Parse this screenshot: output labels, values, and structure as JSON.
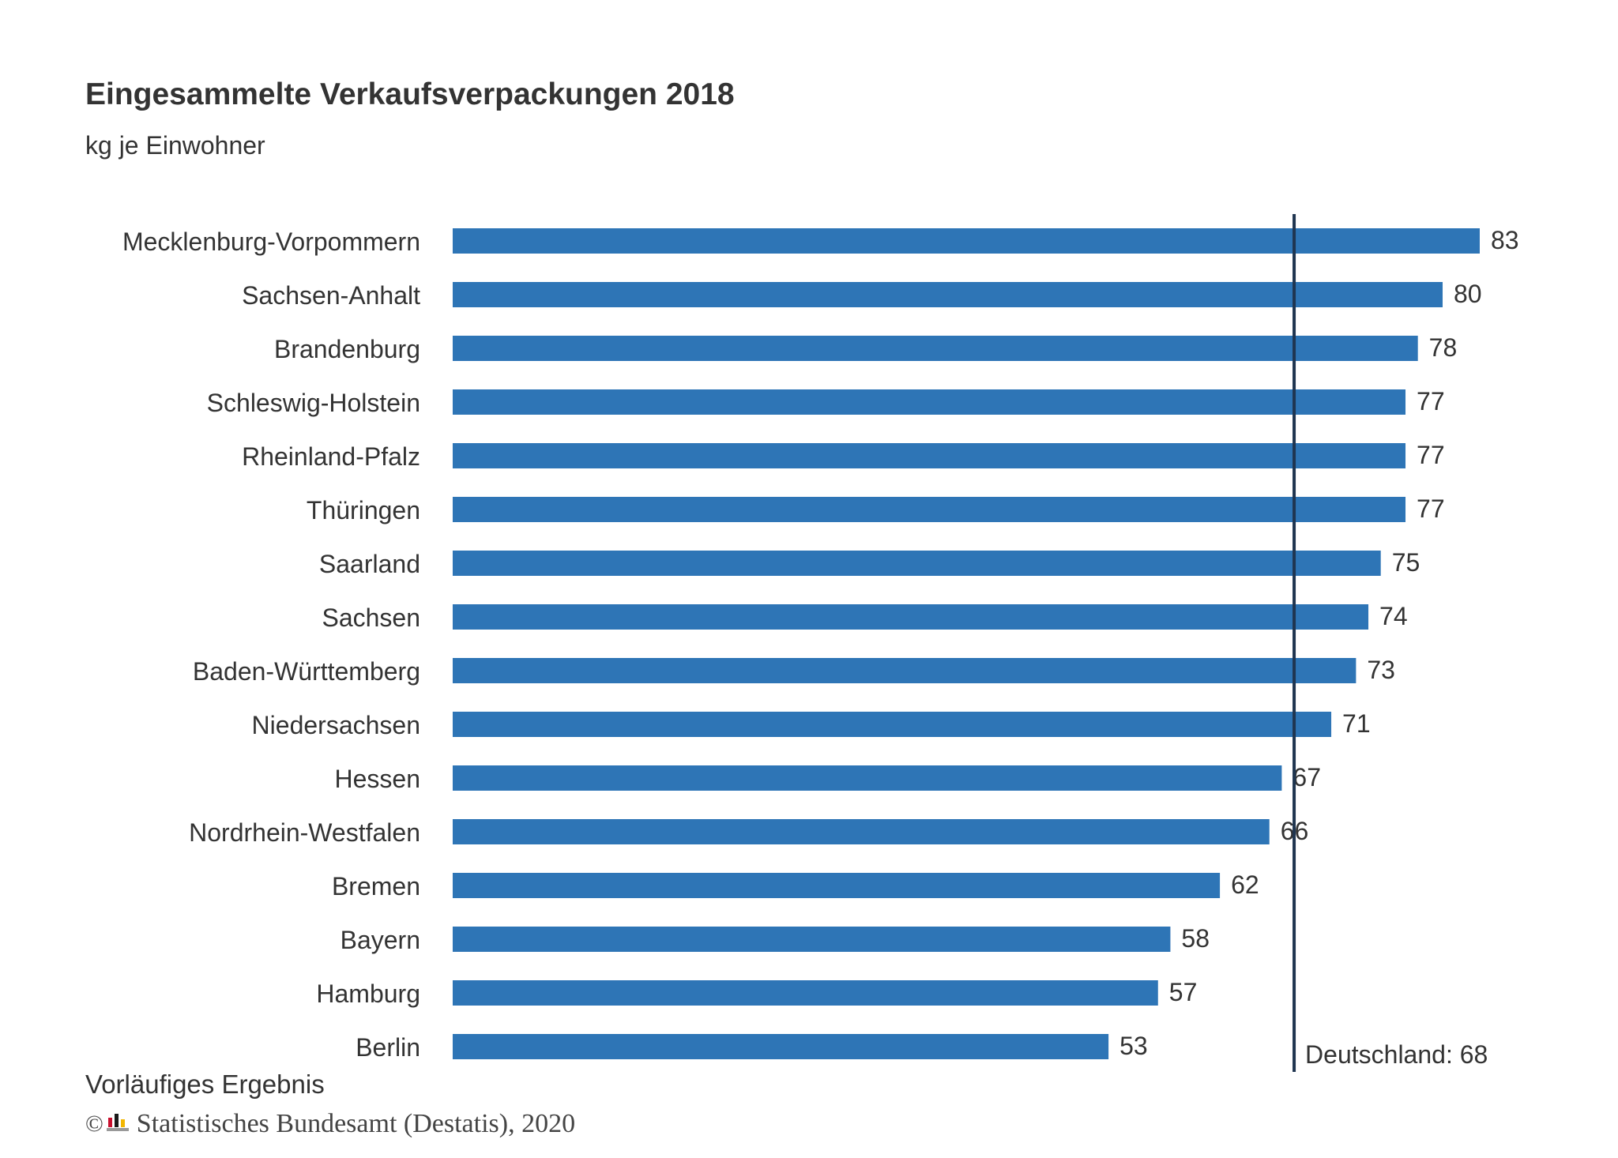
{
  "title": "Eingesammelte Verkaufsverpackungen 2018",
  "subtitle": "kg je Einwohner",
  "footnote": "Vorläufiges Ergebnis",
  "source": {
    "copyright_symbol": "©",
    "text": "Statistisches Bundesamt (Destatis), 2020",
    "logo_icon": "destatis-logo-icon"
  },
  "colors": {
    "bar": "#2e75b6",
    "reference_line": "#1f3550",
    "text": "#333333"
  },
  "chart_data": {
    "type": "bar",
    "orientation": "horizontal",
    "title": "Eingesammelte Verkaufsverpackungen 2018",
    "subtitle": "kg je Einwohner",
    "categories": [
      "Mecklenburg-Vorpommern",
      "Sachsen-Anhalt",
      "Brandenburg",
      "Schleswig-Holstein",
      "Rheinland-Pfalz",
      "Thüringen",
      "Saarland",
      "Sachsen",
      "Baden-Württemberg",
      "Niedersachsen",
      "Hessen",
      "Nordrhein-Westfalen",
      "Bremen",
      "Bayern",
      "Hamburg",
      "Berlin"
    ],
    "values": [
      83,
      80,
      78,
      77,
      77,
      77,
      75,
      74,
      73,
      71,
      67,
      66,
      62,
      58,
      57,
      53
    ],
    "value_labels": [
      "83",
      "80",
      "78",
      "77",
      "77",
      "77",
      "75",
      "74",
      "73",
      "71",
      "67",
      "66",
      "62",
      "58",
      "57",
      "53"
    ],
    "xlim": [
      0,
      83
    ],
    "reference_line": {
      "value": 68,
      "label": "Deutschland: 68"
    },
    "grid": false,
    "legend": "none"
  }
}
